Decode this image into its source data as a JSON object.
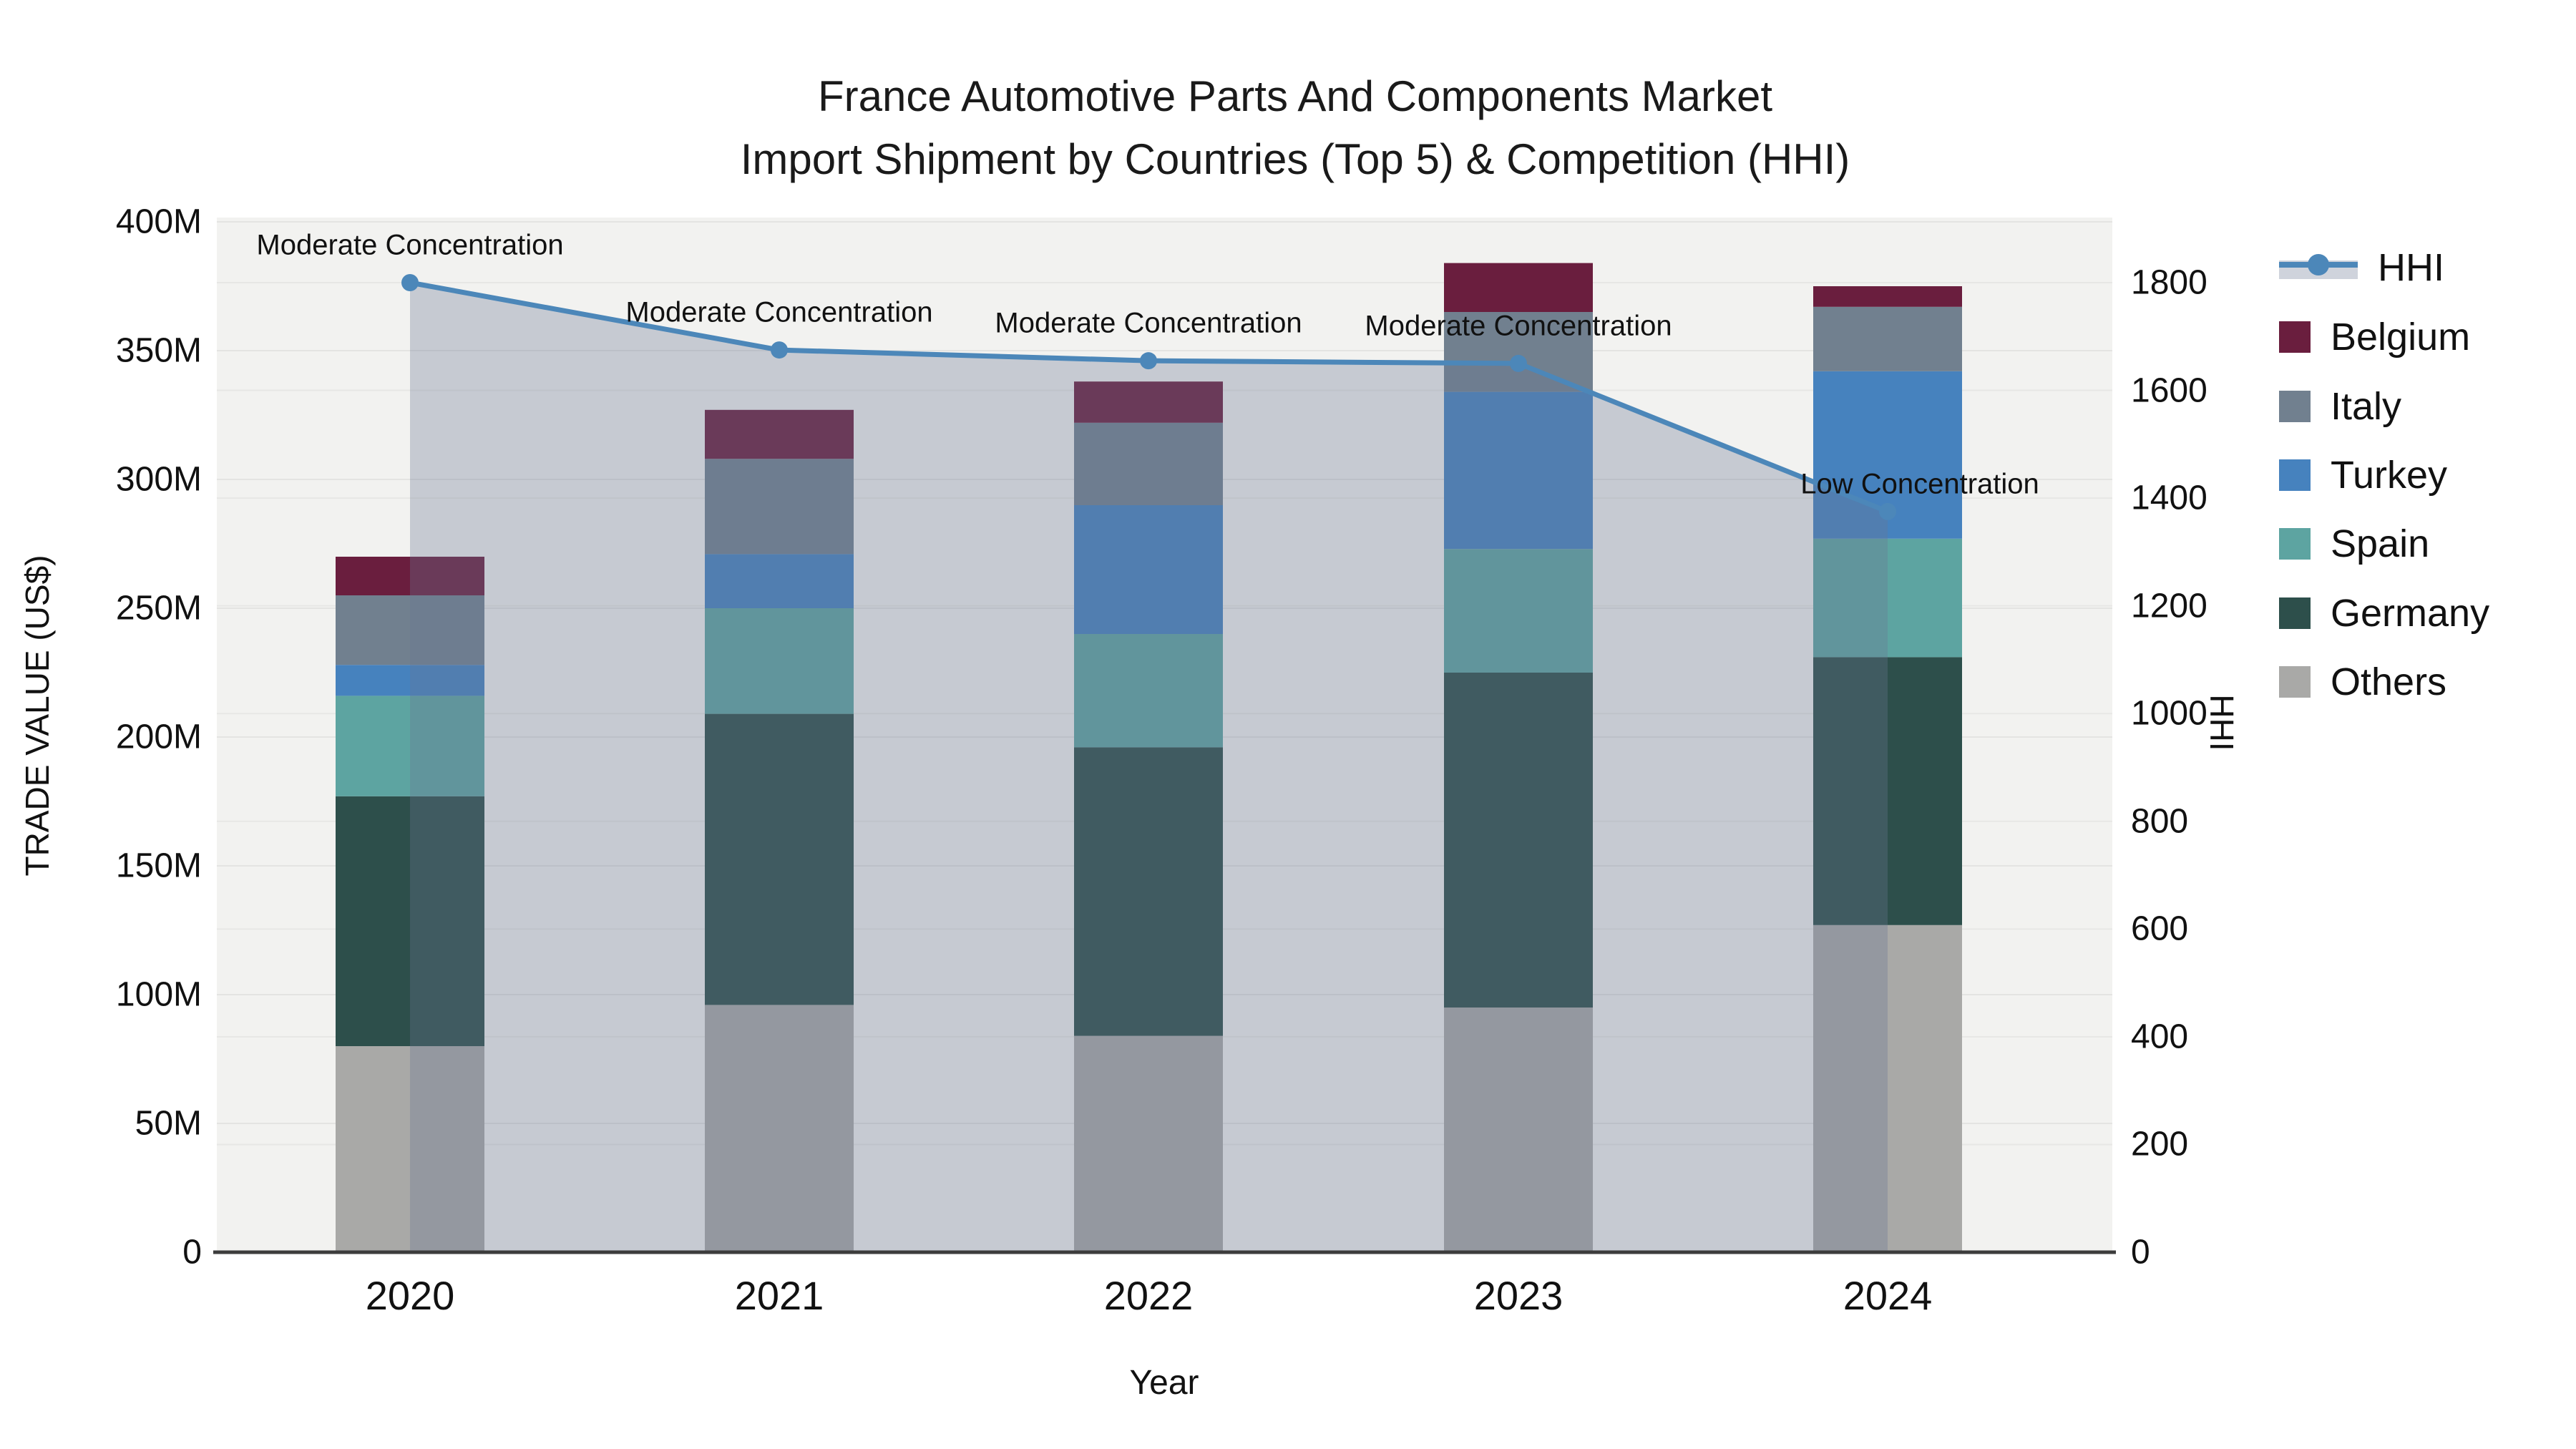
{
  "title": {
    "line1": "France Automotive Parts And Components Market",
    "line2": "Import Shipment by Countries (Top 5) & Competition (HHI)"
  },
  "axes": {
    "y_left": {
      "title": "TRADE VALUE (US$)",
      "tick_labels": [
        "400M",
        "350M",
        "300M",
        "250M",
        "200M",
        "150M",
        "100M",
        "50M",
        "0"
      ]
    },
    "y_right": {
      "title": "HHI",
      "tick_labels": [
        "1800",
        "1600",
        "1400",
        "1200",
        "1000",
        "800",
        "600",
        "400",
        "200",
        "0"
      ]
    },
    "x": {
      "title": "Year",
      "tick_labels": [
        "2020",
        "2021",
        "2022",
        "2023",
        "2024"
      ]
    }
  },
  "legend": {
    "items": [
      {
        "label": "HHI",
        "color": "#4c87b9",
        "type": "line"
      },
      {
        "label": "Belgium",
        "color": "#6a1e3e",
        "type": "box"
      },
      {
        "label": "Italy",
        "color": "#71808f",
        "type": "box"
      },
      {
        "label": "Turkey",
        "color": "#4682be",
        "type": "box"
      },
      {
        "label": "Spain",
        "color": "#5da4a1",
        "type": "box"
      },
      {
        "label": "Germany",
        "color": "#2d4f4b",
        "type": "box"
      },
      {
        "label": "Others",
        "color": "#a9a9a7",
        "type": "box"
      }
    ]
  },
  "chart_data": {
    "type": "bar",
    "subtype": "stacked-bar-with-line",
    "title": "France Automotive Parts And Components Market Import Shipment by Countries (Top 5) & Competition (HHI)",
    "xlabel": "Year",
    "ylabel_left": "TRADE VALUE (US$)",
    "ylabel_right": "HHI",
    "categories": [
      "2020",
      "2021",
      "2022",
      "2023",
      "2024"
    ],
    "value_unit": "M US$",
    "ylim_left": [
      0,
      400
    ],
    "ylim_right": [
      0,
      1800
    ],
    "grid": true,
    "legend_position": "right",
    "series": [
      {
        "name": "Others",
        "color": "#a9a9a7",
        "values": [
          80,
          96,
          84,
          95,
          127
        ]
      },
      {
        "name": "Germany",
        "color": "#2d4f4b",
        "values": [
          97,
          113,
          112,
          130,
          104
        ]
      },
      {
        "name": "Spain",
        "color": "#5da4a1",
        "values": [
          39,
          41,
          44,
          48,
          46
        ]
      },
      {
        "name": "Turkey",
        "color": "#4682be",
        "values": [
          12,
          21,
          50,
          61,
          65
        ]
      },
      {
        "name": "Italy",
        "color": "#71808f",
        "values": [
          27,
          37,
          32,
          31,
          25
        ]
      },
      {
        "name": "Belgium",
        "color": "#6a1e3e",
        "values": [
          15,
          19,
          16,
          19,
          8
        ]
      }
    ],
    "bar_totals": [
      270,
      328,
      338,
      384,
      375
    ],
    "line_series": {
      "name": "HHI",
      "axis": "right",
      "color": "#4c87b9",
      "fill_color": "rgba(106,119,145,0.32)",
      "values": [
        1800,
        1675,
        1655,
        1650,
        1375
      ]
    },
    "annotations": [
      {
        "text": "Moderate Concentration",
        "x": "2020"
      },
      {
        "text": "Moderate Concentration",
        "x": "2021"
      },
      {
        "text": "Moderate Concentration",
        "x": "2022"
      },
      {
        "text": "Moderate Concentration",
        "x": "2023"
      },
      {
        "text": "Low Concentration",
        "x": "2024"
      }
    ]
  }
}
